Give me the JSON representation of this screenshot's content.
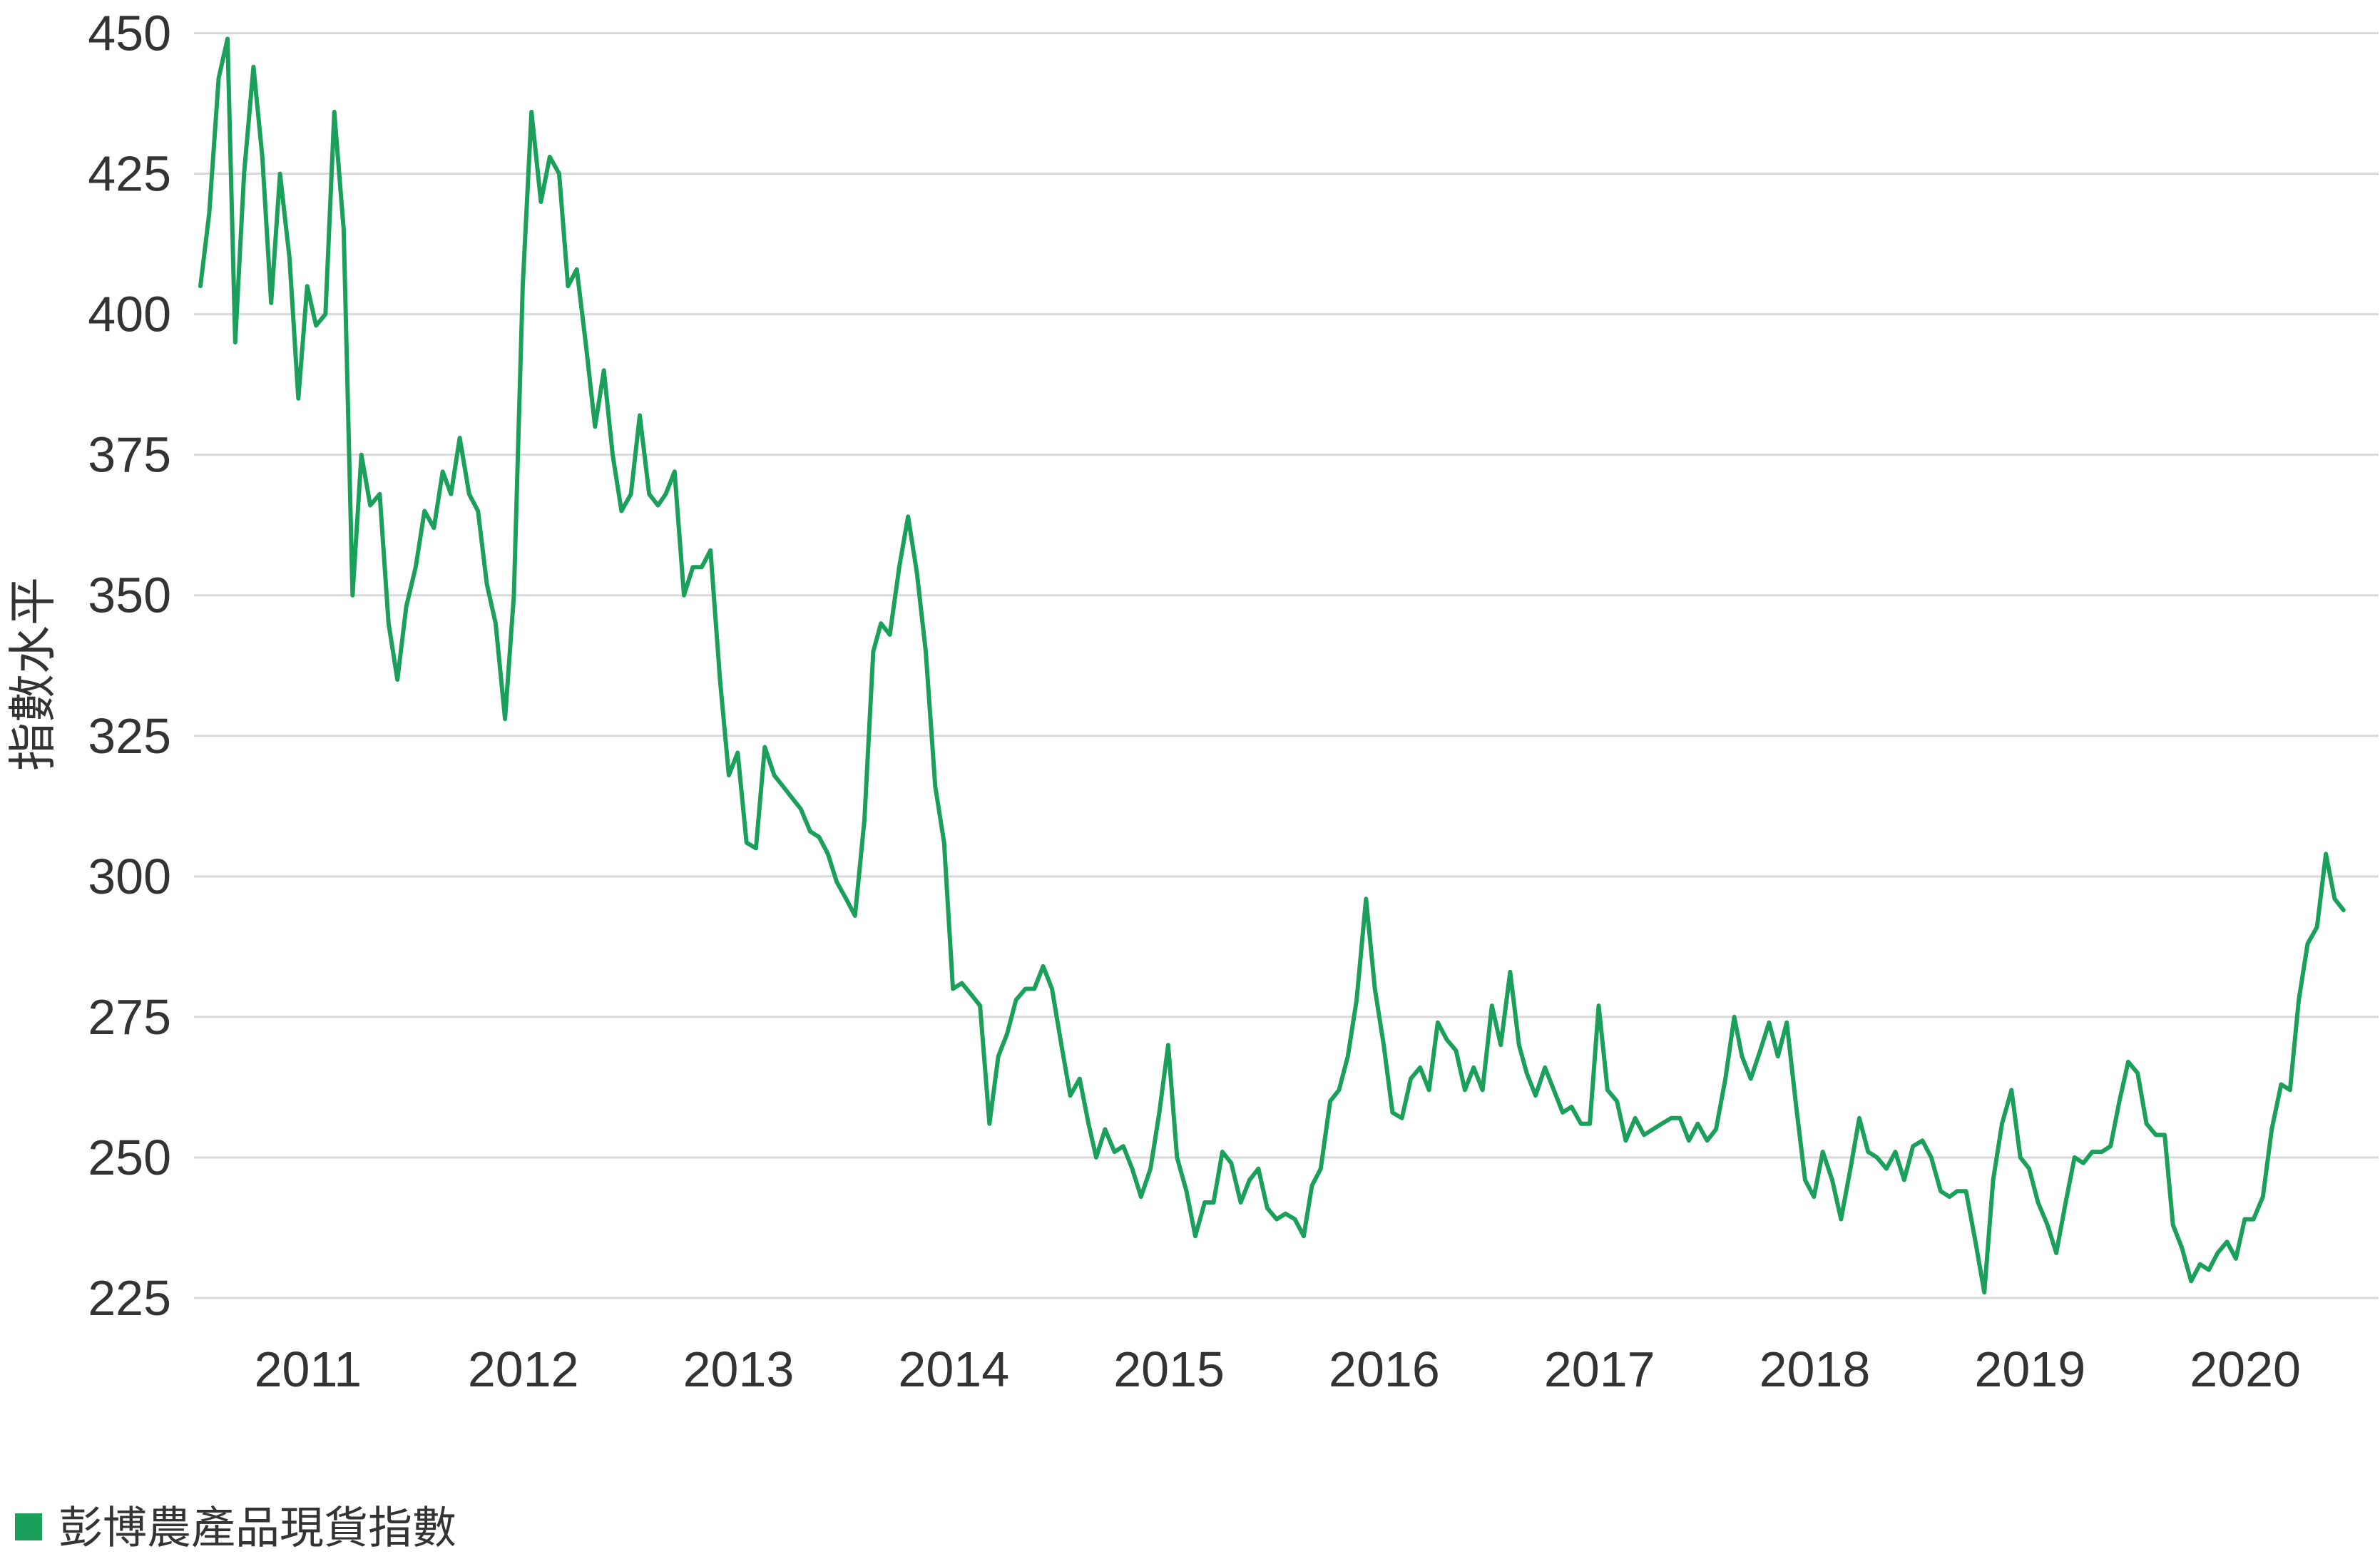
{
  "chart_data": {
    "type": "line",
    "ylabel": "指數水平",
    "xlim": [
      "2011-01-01",
      "2021-01-01"
    ],
    "ylim": [
      225,
      450
    ],
    "yticks": [
      450,
      425,
      400,
      375,
      350,
      325,
      300,
      275,
      250,
      225
    ],
    "xticks": [
      2011,
      2012,
      2013,
      2014,
      2015,
      2016,
      2017,
      2018,
      2019,
      2020
    ],
    "grid": "horizontal",
    "legend": "bottom-left",
    "colors": {
      "grid": "#d9d9d9",
      "text": "#333333"
    },
    "x": [
      "2011-01-01",
      "2011-01-16",
      "2011-02-01",
      "2011-02-16",
      "2011-03-01",
      "2011-03-16",
      "2011-04-01",
      "2011-04-16",
      "2011-05-01",
      "2011-05-16",
      "2011-06-01",
      "2011-06-16",
      "2011-07-01",
      "2011-07-16",
      "2011-08-01",
      "2011-08-16",
      "2011-09-01",
      "2011-09-16",
      "2011-10-01",
      "2011-10-16",
      "2011-11-01",
      "2011-11-16",
      "2011-12-01",
      "2011-12-16",
      "2012-01-01",
      "2012-01-16",
      "2012-02-01",
      "2012-02-16",
      "2012-03-01",
      "2012-03-16",
      "2012-04-01",
      "2012-04-16",
      "2012-05-01",
      "2012-05-16",
      "2012-06-01",
      "2012-06-16",
      "2012-07-01",
      "2012-07-16",
      "2012-08-01",
      "2012-08-16",
      "2012-09-01",
      "2012-09-16",
      "2012-10-01",
      "2012-10-16",
      "2012-11-01",
      "2012-11-16",
      "2012-12-01",
      "2012-12-16",
      "2013-01-01",
      "2013-01-16",
      "2013-02-01",
      "2013-02-16",
      "2013-03-01",
      "2013-03-16",
      "2013-04-01",
      "2013-04-16",
      "2013-05-01",
      "2013-05-16",
      "2013-06-01",
      "2013-06-16",
      "2013-07-01",
      "2013-07-16",
      "2013-08-01",
      "2013-08-16",
      "2013-09-01",
      "2013-09-16",
      "2013-10-01",
      "2013-10-16",
      "2013-11-01",
      "2013-11-16",
      "2013-12-01",
      "2013-12-16",
      "2014-01-01",
      "2014-01-16",
      "2014-02-01",
      "2014-02-16",
      "2014-03-01",
      "2014-03-16",
      "2014-04-01",
      "2014-04-16",
      "2014-05-01",
      "2014-05-16",
      "2014-06-01",
      "2014-06-16",
      "2014-07-01",
      "2014-07-16",
      "2014-08-01",
      "2014-08-16",
      "2014-09-01",
      "2014-09-16",
      "2014-10-01",
      "2014-10-16",
      "2014-11-01",
      "2014-11-16",
      "2014-12-01",
      "2014-12-16",
      "2015-01-01",
      "2015-01-16",
      "2015-02-01",
      "2015-02-16",
      "2015-03-01",
      "2015-03-16",
      "2015-04-01",
      "2015-04-16",
      "2015-05-01",
      "2015-05-16",
      "2015-06-01",
      "2015-06-16",
      "2015-07-01",
      "2015-07-16",
      "2015-08-01",
      "2015-08-16",
      "2015-09-01",
      "2015-09-16",
      "2015-10-01",
      "2015-10-16",
      "2015-11-01",
      "2015-11-16",
      "2015-12-01",
      "2015-12-16",
      "2016-01-01",
      "2016-01-16",
      "2016-02-01",
      "2016-02-16",
      "2016-03-01",
      "2016-03-16",
      "2016-04-01",
      "2016-04-16",
      "2016-05-01",
      "2016-05-16",
      "2016-06-01",
      "2016-06-16",
      "2016-07-01",
      "2016-07-16",
      "2016-08-01",
      "2016-08-16",
      "2016-09-01",
      "2016-09-16",
      "2016-10-01",
      "2016-10-16",
      "2016-11-01",
      "2016-11-16",
      "2016-12-01",
      "2016-12-16",
      "2017-01-01",
      "2017-01-16",
      "2017-02-01",
      "2017-02-16",
      "2017-03-01",
      "2017-03-16",
      "2017-04-01",
      "2017-04-16",
      "2017-05-01",
      "2017-05-16",
      "2017-06-01",
      "2017-06-16",
      "2017-07-01",
      "2017-07-16",
      "2017-08-01",
      "2017-08-16",
      "2017-09-01",
      "2017-09-16",
      "2017-10-01",
      "2017-10-16",
      "2017-11-01",
      "2017-11-16",
      "2017-12-01",
      "2017-12-16",
      "2018-01-01",
      "2018-01-16",
      "2018-02-01",
      "2018-02-16",
      "2018-03-01",
      "2018-03-16",
      "2018-04-01",
      "2018-04-16",
      "2018-05-01",
      "2018-05-16",
      "2018-06-01",
      "2018-06-16",
      "2018-07-01",
      "2018-07-16",
      "2018-08-01",
      "2018-08-16",
      "2018-09-01",
      "2018-09-16",
      "2018-10-01",
      "2018-10-16",
      "2018-11-01",
      "2018-11-16",
      "2018-12-01",
      "2018-12-16",
      "2019-01-01",
      "2019-01-16",
      "2019-02-01",
      "2019-02-16",
      "2019-03-01",
      "2019-03-16",
      "2019-04-01",
      "2019-04-16",
      "2019-05-01",
      "2019-05-16",
      "2019-06-01",
      "2019-06-16",
      "2019-07-01",
      "2019-07-16",
      "2019-08-01",
      "2019-08-16",
      "2019-09-01",
      "2019-09-16",
      "2019-10-01",
      "2019-10-16",
      "2019-11-01",
      "2019-11-16",
      "2019-12-01",
      "2019-12-16",
      "2020-01-01",
      "2020-01-16",
      "2020-02-01",
      "2020-02-16",
      "2020-03-01",
      "2020-03-16",
      "2020-04-01",
      "2020-04-16",
      "2020-05-01",
      "2020-05-16",
      "2020-06-01",
      "2020-06-16",
      "2020-07-01",
      "2020-07-16",
      "2020-08-01",
      "2020-08-16",
      "2020-09-01",
      "2020-09-16",
      "2020-10-01",
      "2020-10-16",
      "2020-11-01",
      "2020-11-16",
      "2020-12-01",
      "2020-12-16"
    ],
    "series": [
      {
        "name": "彭博農產品現貨指數",
        "color": "#1aa05a",
        "values": [
          405,
          418,
          442,
          449,
          395,
          425,
          444,
          428,
          402,
          425,
          410,
          385,
          405,
          398,
          400,
          436,
          415,
          350,
          375,
          366,
          368,
          345,
          335,
          348,
          355,
          365,
          362,
          372,
          368,
          378,
          368,
          365,
          352,
          345,
          328,
          350,
          405,
          436,
          420,
          428,
          425,
          405,
          408,
          395,
          380,
          390,
          375,
          365,
          368,
          382,
          368,
          366,
          368,
          372,
          350,
          355,
          355,
          358,
          335,
          318,
          322,
          306,
          305,
          323,
          318,
          316,
          314,
          312,
          308,
          307,
          304,
          299,
          296,
          293,
          310,
          340,
          345,
          343,
          355,
          364,
          354,
          340,
          316,
          306,
          280,
          281,
          279,
          277,
          256,
          268,
          272,
          278,
          280,
          280,
          284,
          280,
          270,
          261,
          264,
          256,
          250,
          255,
          251,
          252,
          248,
          243,
          248,
          258,
          270,
          250,
          244,
          236,
          242,
          242,
          251,
          249,
          242,
          246,
          248,
          241,
          239,
          240,
          239,
          236,
          245,
          248,
          260,
          262,
          268,
          278,
          296,
          280,
          270,
          258,
          257,
          264,
          266,
          262,
          274,
          271,
          269,
          262,
          266,
          262,
          277,
          270,
          283,
          270,
          265,
          261,
          266,
          262,
          258,
          259,
          256,
          256,
          277,
          262,
          260,
          253,
          257,
          254,
          255,
          256,
          257,
          257,
          253,
          256,
          253,
          255,
          264,
          275,
          268,
          264,
          269,
          274,
          268,
          274,
          259,
          246,
          243,
          251,
          246,
          239,
          248,
          257,
          251,
          250,
          248,
          251,
          246,
          252,
          253,
          250,
          244,
          243,
          244,
          244,
          235,
          226,
          246,
          256,
          262,
          250,
          248,
          242,
          238,
          233,
          242,
          250,
          249,
          251,
          251,
          252,
          260,
          267,
          265,
          256,
          254,
          254,
          238,
          234,
          228,
          231,
          230,
          233,
          235,
          232,
          239,
          239,
          243,
          255,
          263,
          262,
          278,
          288,
          291,
          304,
          296,
          294
        ]
      }
    ]
  }
}
